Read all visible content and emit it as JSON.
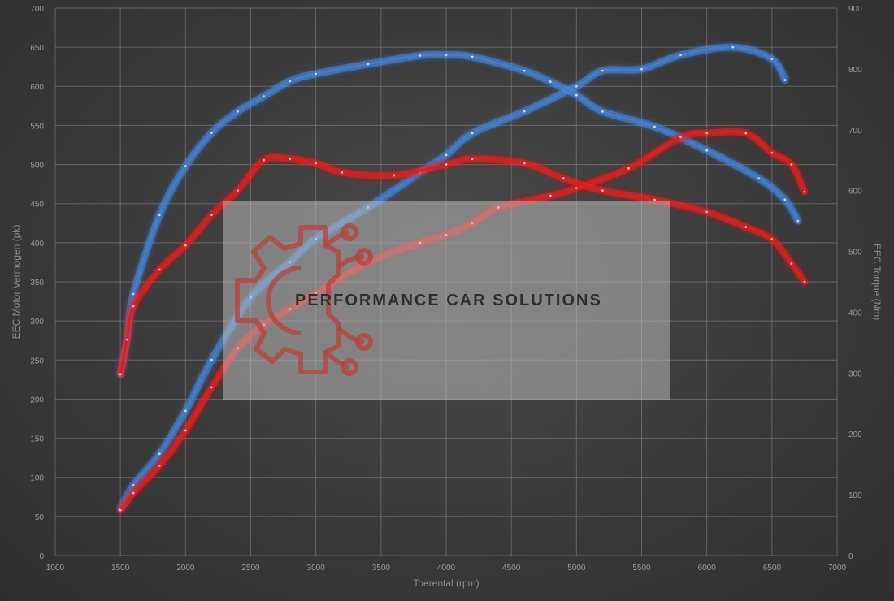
{
  "chart_data": {
    "type": "line",
    "xlabel": "Toerental (rpm)",
    "ylabel_left": "EEC Motor Vermogen (pk)",
    "ylabel_right": "EEC Torque (Nm)",
    "xlim": [
      1000,
      7000
    ],
    "ylim_left": [
      0,
      700
    ],
    "ylim_right": [
      0,
      900
    ],
    "x_ticks": [
      1000,
      1500,
      2000,
      2500,
      3000,
      3500,
      4000,
      4500,
      5000,
      5500,
      6000,
      6500,
      7000
    ],
    "y_left_ticks": [
      0,
      50,
      100,
      150,
      200,
      250,
      300,
      350,
      400,
      450,
      500,
      550,
      600,
      650,
      700
    ],
    "y_right_ticks": [
      0,
      100,
      200,
      300,
      400,
      500,
      600,
      700,
      800,
      900
    ],
    "grid": true,
    "colors": {
      "blue": "#3f7fd4",
      "red": "#e21a1a",
      "blue_glow": "#5a9cff",
      "red_glow": "#ff2a2a"
    },
    "series": [
      {
        "key": "power_blue",
        "axis": "left",
        "color": "#3f7fd4",
        "x": [
          1500,
          1600,
          1800,
          2000,
          2200,
          2500,
          2800,
          3000,
          3400,
          3800,
          4000,
          4200,
          4600,
          5000,
          5200,
          5500,
          5800,
          6200,
          6500,
          6600
        ],
        "y": [
          60,
          90,
          130,
          185,
          250,
          330,
          375,
          405,
          445,
          490,
          512,
          540,
          568,
          600,
          620,
          622,
          640,
          650,
          635,
          608
        ]
      },
      {
        "key": "torque_blue",
        "axis": "right",
        "color": "#3f7fd4",
        "x": [
          1500,
          1550,
          1600,
          1800,
          2000,
          2200,
          2400,
          2600,
          2800,
          3000,
          3400,
          3800,
          4000,
          4200,
          4600,
          4800,
          5000,
          5200,
          5600,
          6000,
          6400,
          6600,
          6700
        ],
        "y": [
          298,
          355,
          430,
          560,
          640,
          695,
          730,
          755,
          780,
          792,
          808,
          822,
          823,
          820,
          797,
          779,
          757,
          730,
          705,
          666,
          620,
          585,
          550
        ]
      },
      {
        "key": "power_red",
        "axis": "left",
        "color": "#e21a1a",
        "x": [
          1500,
          1600,
          1800,
          2000,
          2200,
          2400,
          2600,
          2800,
          3000,
          3400,
          3800,
          4000,
          4200,
          4400,
          4800,
          5000,
          5400,
          5800,
          6000,
          6300,
          6500,
          6650,
          6750
        ],
        "y": [
          58,
          80,
          115,
          160,
          215,
          265,
          295,
          315,
          335,
          375,
          400,
          410,
          425,
          445,
          460,
          470,
          495,
          535,
          540,
          540,
          515,
          500,
          465
        ]
      },
      {
        "key": "torque_red",
        "axis": "right",
        "color": "#e21a1a",
        "x": [
          1500,
          1550,
          1600,
          1800,
          2000,
          2200,
          2400,
          2600,
          2800,
          3000,
          3200,
          3600,
          4000,
          4200,
          4600,
          4900,
          5200,
          5600,
          6000,
          6300,
          6500,
          6650,
          6750
        ],
        "y": [
          298,
          355,
          410,
          470,
          510,
          560,
          600,
          650,
          652,
          645,
          630,
          625,
          643,
          652,
          645,
          620,
          600,
          585,
          565,
          540,
          520,
          480,
          450
        ]
      }
    ]
  },
  "watermark": {
    "text": "PERFORMANCE CAR SOLUTIONS",
    "logo": "gear-circuit-logo"
  }
}
